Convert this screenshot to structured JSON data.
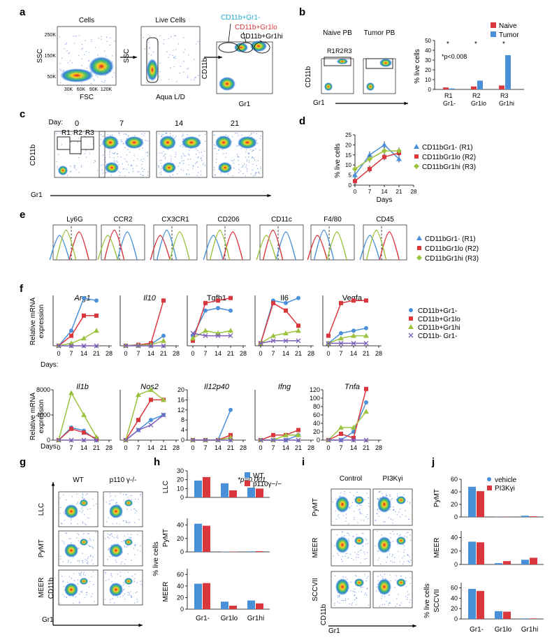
{
  "colors": {
    "blue": "#4a90d9",
    "red": "#d9363e",
    "green": "#9cc33f",
    "purple": "#7b5fb8",
    "gray": "#9a9a9a"
  },
  "panels": [
    "a",
    "b",
    "c",
    "d",
    "e",
    "f",
    "g",
    "h",
    "i",
    "j"
  ],
  "a": {
    "cells_title": "Cells",
    "live_title": "Live Cells",
    "ssc": "SSC",
    "fsc": "FSC",
    "aqua": "Aqua L/D",
    "cd11b": "CD11b",
    "gr1": "Gr1",
    "gate_neg": "CD11b+Gr1-",
    "gate_lo": "CD11b+Gr1lo",
    "gate_hi": "CD11b+Gr1hi",
    "ssc_ticks": [
      "250K",
      "150K",
      "50K"
    ],
    "fsc_ticks": [
      "30K",
      "60K",
      "90K",
      "120K"
    ]
  },
  "b": {
    "naive_title": "Naive PB",
    "tumor_title": "Tumor PB",
    "cd11b": "CD11b",
    "gr1": "Gr1",
    "gates": [
      "R1",
      "R2",
      "R3"
    ],
    "legend": [
      "Naive",
      "Tumor"
    ],
    "star": "*",
    "pval": "*p<0.008",
    "ylabel": "% live cells",
    "yticks": [
      "0",
      "10",
      "20",
      "30",
      "40",
      "50"
    ],
    "cats": [
      [
        "R1",
        "Gr1-"
      ],
      [
        "R2",
        "Gr1lo"
      ],
      [
        "R3",
        "Gr1hi"
      ]
    ]
  },
  "c": {
    "day_label": "Day:",
    "days": [
      "0",
      "7",
      "14",
      "21"
    ],
    "gates": [
      "R1",
      "R2",
      "R3"
    ],
    "cd11b": "CD11b",
    "gr1": "Gr1"
  },
  "d": {
    "ylabel": "% live cells",
    "xlabel": "Days",
    "legend": [
      "CD11bGr1- (R1)",
      "CD11bGr1lo (R2)",
      "CD11bGr1hi (R3)"
    ]
  },
  "e": {
    "markers": [
      "Ly6G",
      "CCR2",
      "CX3CR1",
      "CD206",
      "CD11c",
      "F4/80",
      "CD45"
    ],
    "legend": [
      "CD11bGr1- (R1)",
      "CD11bGr1lo (R2)",
      "CD11bGr1hi (R3)"
    ]
  },
  "f": {
    "ylabel1": "Relative mRNA",
    "ylabel2": "expression",
    "days_label": "Days:",
    "row1": [
      "Arg1",
      "Il10",
      "Tgfb1",
      "Il6",
      "Vegfa"
    ],
    "row2": [
      "Il1b",
      "Nos2",
      "Il12p40",
      "Ifng",
      "Tnfa"
    ],
    "legend": [
      "CD11b+Gr1-",
      "CD11b+Gr1lo",
      "CD11b+Gr1hi",
      "CD11b- Gr1-"
    ]
  },
  "g": {
    "cols": [
      "WT",
      "p110 γ-/-"
    ],
    "rows": [
      "LLC",
      "PyMT",
      "MEER"
    ],
    "cd11b": "CD11b",
    "gr1": "Gr1"
  },
  "h": {
    "legend": [
      "WT",
      "p110γ−/−"
    ],
    "pval": "*p=0.001",
    "rows": [
      "LLC",
      "PyMT",
      "MEER"
    ],
    "ylabel": "% live cells",
    "cats": [
      "Gr1-",
      "Gr1lo",
      "Gr1hi"
    ]
  },
  "i": {
    "cols": [
      "Control",
      "PI3Kγi"
    ],
    "rows": [
      "PyMT",
      "MEER",
      "SCCVII"
    ],
    "cd11b": "CD11b",
    "gr1": "Gr1"
  },
  "j": {
    "legend": [
      "vehicle",
      "PI3Kγi"
    ],
    "rows": [
      "PyMT",
      "MEER",
      "SCCVII"
    ],
    "ylabel": "% live cells",
    "cats": [
      "Gr1-",
      "Gr1lo",
      "Gr1hi"
    ]
  },
  "chart_data": [
    {
      "type": "bar",
      "panel": "b",
      "categories": [
        "R1 Gr1-",
        "R2 Gr1lo",
        "R3 Gr1hi"
      ],
      "ylim": [
        0,
        50
      ],
      "series": [
        {
          "name": "Naive",
          "values": [
            2,
            3,
            4
          ]
        },
        {
          "name": "Tumor",
          "values": [
            1,
            9,
            35
          ]
        }
      ]
    },
    {
      "type": "line",
      "panel": "d",
      "xlabel": "Days",
      "ylabel": "% live cells",
      "x": [
        0,
        7,
        14,
        21
      ],
      "xticks": [
        0,
        7,
        14,
        21,
        28
      ],
      "series": [
        {
          "name": "CD11bGr1- (R1)",
          "values": [
            5,
            15,
            20,
            13
          ]
        },
        {
          "name": "CD11bGr1lo (R2)",
          "values": [
            2,
            8,
            14,
            16
          ]
        },
        {
          "name": "CD11bGr1hi (R3)",
          "values": [
            8,
            13,
            17,
            17
          ]
        }
      ]
    },
    {
      "type": "line",
      "panel": "f",
      "title": "Arg1",
      "x": [
        0,
        7,
        14,
        21
      ],
      "ylim": [
        0,
        100
      ],
      "series": [
        {
          "name": "CD11b+Gr1-",
          "values": [
            0,
            30,
            95,
            90
          ]
        },
        {
          "name": "CD11b+Gr1lo",
          "values": [
            0,
            20,
            60,
            60
          ]
        },
        {
          "name": "CD11b+Gr1hi",
          "values": [
            0,
            5,
            15,
            30
          ]
        },
        {
          "name": "CD11b- Gr1-",
          "values": [
            0,
            0,
            0,
            0
          ]
        }
      ]
    },
    {
      "type": "line",
      "panel": "f",
      "title": "Il10",
      "x": [
        0,
        7,
        14,
        21
      ],
      "ylim": [
        0,
        100
      ],
      "series": [
        {
          "name": "CD11b+Gr1-",
          "values": [
            0,
            2,
            3,
            20
          ]
        },
        {
          "name": "CD11b+Gr1lo",
          "values": [
            0,
            2,
            5,
            90
          ]
        },
        {
          "name": "CD11b+Gr1hi",
          "values": [
            0,
            1,
            2,
            10
          ]
        },
        {
          "name": "CD11b- Gr1-",
          "values": [
            0,
            0,
            0,
            0
          ]
        }
      ]
    },
    {
      "type": "line",
      "panel": "f",
      "title": "Tgfb1",
      "x": [
        0,
        7,
        14,
        21
      ],
      "ylim": [
        0,
        100
      ],
      "series": [
        {
          "name": "CD11b+Gr1-",
          "values": [
            20,
            70,
            75,
            70
          ]
        },
        {
          "name": "CD11b+Gr1lo",
          "values": [
            10,
            85,
            90,
            95
          ]
        },
        {
          "name": "CD11b+Gr1hi",
          "values": [
            15,
            30,
            25,
            30
          ]
        },
        {
          "name": "CD11b- Gr1-",
          "values": [
            25,
            20,
            20,
            20
          ]
        }
      ]
    },
    {
      "type": "line",
      "panel": "f",
      "title": "Il6",
      "x": [
        0,
        7,
        14,
        21
      ],
      "ylim": [
        0,
        100
      ],
      "series": [
        {
          "name": "CD11b+Gr1-",
          "values": [
            5,
            90,
            85,
            95
          ]
        },
        {
          "name": "CD11b+Gr1lo",
          "values": [
            5,
            85,
            70,
            40
          ]
        },
        {
          "name": "CD11b+Gr1hi",
          "values": [
            5,
            20,
            25,
            30
          ]
        },
        {
          "name": "CD11b- Gr1-",
          "values": [
            5,
            10,
            10,
            10
          ]
        }
      ]
    },
    {
      "type": "line",
      "panel": "f",
      "title": "Vegfa",
      "x": [
        0,
        7,
        14,
        21
      ],
      "ylim": [
        0,
        100
      ],
      "series": [
        {
          "name": "CD11b+Gr1-",
          "values": [
            5,
            25,
            30,
            35
          ]
        },
        {
          "name": "CD11b+Gr1lo",
          "values": [
            20,
            85,
            90,
            90
          ]
        },
        {
          "name": "CD11b+Gr1hi",
          "values": [
            5,
            15,
            20,
            20
          ]
        },
        {
          "name": "CD11b- Gr1-",
          "values": [
            5,
            5,
            5,
            5
          ]
        }
      ]
    },
    {
      "type": "line",
      "panel": "f",
      "title": "Il1b",
      "x": [
        0,
        7,
        14,
        21
      ],
      "yticks": [
        0,
        4000,
        8000
      ],
      "series": [
        {
          "name": "CD11b+Gr1-",
          "values": [
            0,
            2000,
            1500,
            0
          ]
        },
        {
          "name": "CD11b+Gr1lo",
          "values": [
            0,
            1800,
            1200,
            200
          ]
        },
        {
          "name": "CD11b+Gr1hi",
          "values": [
            0,
            7500,
            4000,
            500
          ]
        },
        {
          "name": "CD11b- Gr1-",
          "values": [
            0,
            0,
            0,
            0
          ]
        }
      ]
    },
    {
      "type": "line",
      "panel": "f",
      "title": "Nos2",
      "x": [
        0,
        7,
        14,
        21
      ],
      "series": [
        {
          "name": "CD11b+Gr1-",
          "values": [
            0,
            10,
            20,
            25
          ]
        },
        {
          "name": "CD11b+Gr1lo",
          "values": [
            0,
            20,
            40,
            40
          ]
        },
        {
          "name": "CD11b+Gr1hi",
          "values": [
            0,
            45,
            50,
            40
          ]
        },
        {
          "name": "CD11b- Gr1-",
          "values": [
            0,
            10,
            15,
            25
          ]
        }
      ]
    },
    {
      "type": "line",
      "panel": "f",
      "title": "Il12p40",
      "x": [
        0,
        7,
        14,
        21
      ],
      "yticks": [
        0,
        4,
        8,
        12,
        16,
        20
      ],
      "series": [
        {
          "name": "CD11b+Gr1-",
          "values": [
            0,
            0,
            0,
            12
          ]
        },
        {
          "name": "CD11b+Gr1lo",
          "values": [
            0,
            0,
            0,
            2
          ]
        },
        {
          "name": "CD11b+Gr1hi",
          "values": [
            0,
            0,
            0,
            1
          ]
        },
        {
          "name": "CD11b- Gr1-",
          "values": [
            0,
            0,
            0,
            0
          ]
        }
      ]
    },
    {
      "type": "line",
      "panel": "f",
      "title": "Ifng",
      "x": [
        0,
        7,
        14,
        21
      ],
      "series": [
        {
          "name": "CD11b+Gr1-",
          "values": [
            0,
            0,
            0,
            1
          ]
        },
        {
          "name": "CD11b+Gr1lo",
          "values": [
            0,
            1,
            1,
            2
          ]
        },
        {
          "name": "CD11b+Gr1hi",
          "values": [
            0,
            0,
            1,
            1
          ]
        },
        {
          "name": "CD11b- Gr1-",
          "values": [
            0,
            0,
            0,
            0
          ]
        }
      ]
    },
    {
      "type": "line",
      "panel": "f",
      "title": "Tnfa",
      "x": [
        0,
        7,
        14,
        21
      ],
      "yticks": [
        0,
        20,
        40,
        60,
        80,
        100,
        120
      ],
      "series": [
        {
          "name": "CD11b+Gr1-",
          "values": [
            0,
            0,
            20,
            90
          ]
        },
        {
          "name": "CD11b+Gr1lo",
          "values": [
            0,
            15,
            5,
            122
          ]
        },
        {
          "name": "CD11b+Gr1hi",
          "values": [
            0,
            30,
            30,
            68
          ]
        },
        {
          "name": "CD11b- Gr1-",
          "values": [
            0,
            0,
            0,
            0
          ]
        }
      ]
    },
    {
      "type": "bar",
      "panel": "h",
      "title": "LLC",
      "categories": [
        "Gr1-",
        "Gr1lo",
        "Gr1hi"
      ],
      "ylim": [
        0,
        30
      ],
      "yticks": [
        0,
        10,
        20,
        30
      ],
      "series": [
        {
          "name": "WT",
          "values": [
            19,
            16,
            11
          ]
        },
        {
          "name": "p110γ−/−",
          "values": [
            23,
            8,
            10
          ]
        }
      ]
    },
    {
      "type": "bar",
      "panel": "h",
      "title": "PyMT",
      "categories": [
        "Gr1-",
        "Gr1lo",
        "Gr1hi"
      ],
      "ylim": [
        0,
        50
      ],
      "yticks": [
        0,
        20,
        40
      ],
      "series": [
        {
          "name": "WT",
          "values": [
            42,
            0.5,
            0.8
          ]
        },
        {
          "name": "p110γ−/−",
          "values": [
            39,
            0.5,
            1
          ]
        }
      ]
    },
    {
      "type": "bar",
      "panel": "h",
      "title": "MEER",
      "categories": [
        "Gr1-",
        "Gr1lo",
        "Gr1hi"
      ],
      "ylim": [
        0,
        70
      ],
      "yticks": [
        0,
        20,
        40,
        60
      ],
      "series": [
        {
          "name": "WT",
          "values": [
            44,
            13,
            15
          ]
        },
        {
          "name": "p110γ−/−",
          "values": [
            45,
            6,
            10
          ]
        }
      ]
    },
    {
      "type": "bar",
      "panel": "j",
      "title": "PyMT",
      "categories": [
        "Gr1-",
        "Gr1lo",
        "Gr1hi"
      ],
      "ylim": [
        0,
        60
      ],
      "yticks": [
        0,
        20,
        40,
        60
      ],
      "series": [
        {
          "name": "vehicle",
          "values": [
            48,
            0.3,
            2
          ]
        },
        {
          "name": "PI3Kγi",
          "values": [
            41,
            0.3,
            1
          ]
        }
      ]
    },
    {
      "type": "bar",
      "panel": "j",
      "title": "MEER",
      "categories": [
        "Gr1-",
        "Gr1lo",
        "Gr1hi"
      ],
      "ylim": [
        0,
        50
      ],
      "yticks": [
        0,
        20,
        40
      ],
      "series": [
        {
          "name": "vehicle",
          "values": [
            34,
            2,
            7
          ]
        },
        {
          "name": "PI3Kγi",
          "values": [
            33,
            5,
            10
          ]
        }
      ]
    },
    {
      "type": "bar",
      "panel": "j",
      "title": "SCCVII",
      "categories": [
        "Gr1-",
        "Gr1lo",
        "Gr1hi"
      ],
      "ylim": [
        0,
        70
      ],
      "yticks": [
        0,
        20,
        40,
        60
      ],
      "series": [
        {
          "name": "vehicle",
          "values": [
            58,
            15,
            1
          ]
        },
        {
          "name": "PI3Kγi",
          "values": [
            54,
            14,
            1
          ]
        }
      ]
    }
  ]
}
